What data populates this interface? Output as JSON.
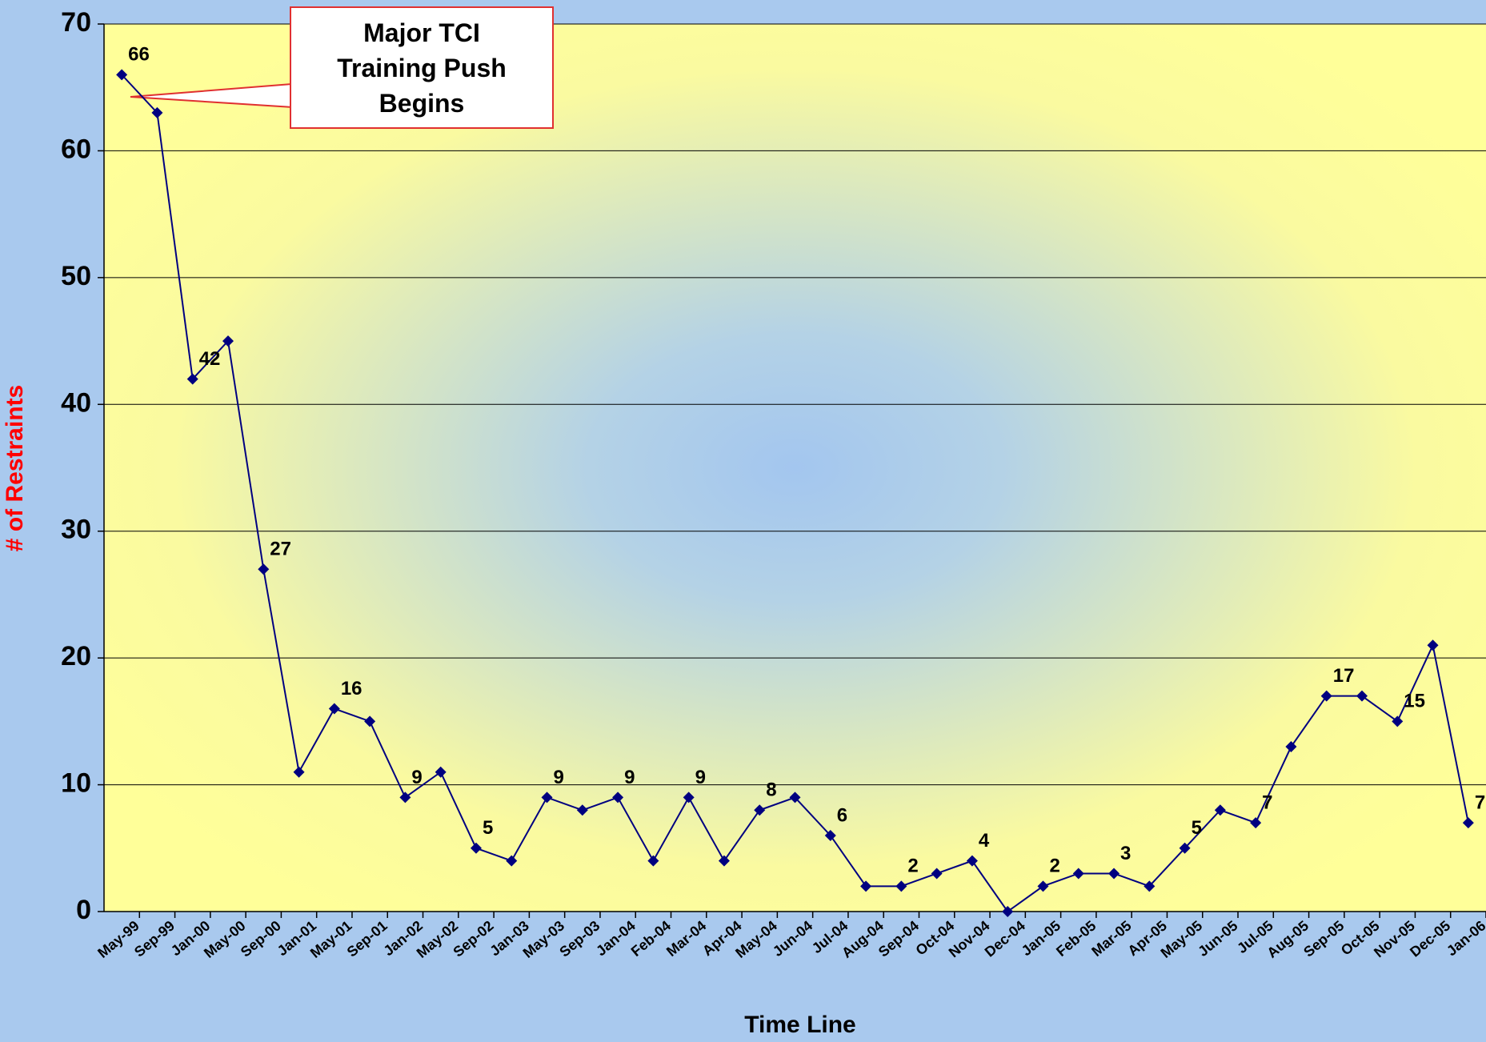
{
  "chart_data": {
    "type": "line",
    "categories": [
      "May-99",
      "Sep-99",
      "Jan-00",
      "May-00",
      "Sep-00",
      "Jan-01",
      "May-01",
      "Sep-01",
      "Jan-02",
      "May-02",
      "Sep-02",
      "Jan-03",
      "May-03",
      "Sep-03",
      "Jan-04",
      "Feb-04",
      "Mar-04",
      "Apr-04",
      "May-04",
      "Jun-04",
      "Jul-04",
      "Aug-04",
      "Sep-04",
      "Oct-04",
      "Nov-04",
      "Dec-04",
      "Jan-05",
      "Feb-05",
      "Mar-05",
      "Apr-05",
      "May-05",
      "Jun-05",
      "Jul-05",
      "Aug-05",
      "Sep-05",
      "Oct-05",
      "Nov-05",
      "Dec-05",
      "Jan-06"
    ],
    "values": [
      66,
      63,
      42,
      45,
      27,
      11,
      16,
      15,
      9,
      11,
      5,
      4,
      9,
      8,
      9,
      4,
      9,
      4,
      8,
      9,
      6,
      2,
      2,
      3,
      4,
      0,
      2,
      3,
      3,
      2,
      5,
      8,
      7,
      13,
      17,
      17,
      15,
      21,
      7
    ],
    "color": "#000080",
    "label_every": 2,
    "ylim": [
      0,
      70
    ],
    "yticks": [
      0,
      10,
      20,
      30,
      40,
      50,
      60,
      70
    ],
    "grid": true,
    "xlabel": "Time Line",
    "ylabel": "# of Restraints",
    "annotation": "Major TCI Training Push Begins"
  }
}
